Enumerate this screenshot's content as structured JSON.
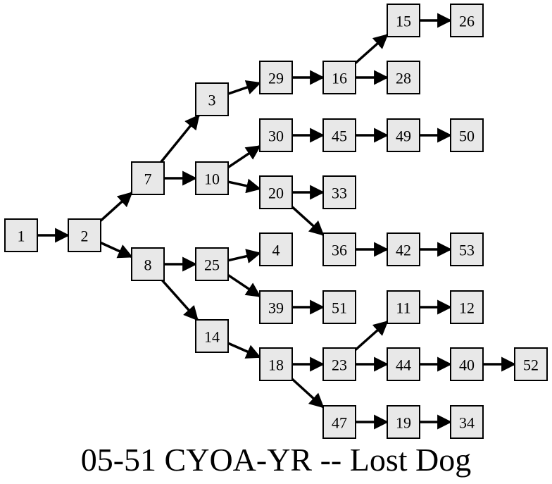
{
  "title": "05-51 CYOA-YR -- Lost Dog",
  "colors": {
    "node_fill": "#e8e8e8",
    "node_stroke": "#000000",
    "edge": "#000000",
    "background": "#ffffff"
  },
  "nodes": [
    {
      "id": "1"
    },
    {
      "id": "2"
    },
    {
      "id": "7"
    },
    {
      "id": "8"
    },
    {
      "id": "3"
    },
    {
      "id": "10"
    },
    {
      "id": "25"
    },
    {
      "id": "14"
    },
    {
      "id": "29"
    },
    {
      "id": "30"
    },
    {
      "id": "20"
    },
    {
      "id": "4"
    },
    {
      "id": "39"
    },
    {
      "id": "18"
    },
    {
      "id": "16"
    },
    {
      "id": "45"
    },
    {
      "id": "33"
    },
    {
      "id": "36"
    },
    {
      "id": "51"
    },
    {
      "id": "23"
    },
    {
      "id": "47"
    },
    {
      "id": "15"
    },
    {
      "id": "28"
    },
    {
      "id": "49"
    },
    {
      "id": "42"
    },
    {
      "id": "11"
    },
    {
      "id": "44"
    },
    {
      "id": "19"
    },
    {
      "id": "26"
    },
    {
      "id": "50"
    },
    {
      "id": "53"
    },
    {
      "id": "12"
    },
    {
      "id": "40"
    },
    {
      "id": "34"
    },
    {
      "id": "52"
    }
  ],
  "edges": [
    [
      "1",
      "2"
    ],
    [
      "2",
      "7"
    ],
    [
      "2",
      "8"
    ],
    [
      "7",
      "3"
    ],
    [
      "7",
      "10"
    ],
    [
      "8",
      "25"
    ],
    [
      "8",
      "14"
    ],
    [
      "3",
      "29"
    ],
    [
      "10",
      "30"
    ],
    [
      "10",
      "20"
    ],
    [
      "25",
      "4"
    ],
    [
      "25",
      "39"
    ],
    [
      "14",
      "18"
    ],
    [
      "29",
      "16"
    ],
    [
      "30",
      "45"
    ],
    [
      "20",
      "33"
    ],
    [
      "20",
      "36"
    ],
    [
      "39",
      "51"
    ],
    [
      "18",
      "23"
    ],
    [
      "18",
      "47"
    ],
    [
      "16",
      "15"
    ],
    [
      "16",
      "28"
    ],
    [
      "45",
      "49"
    ],
    [
      "36",
      "42"
    ],
    [
      "23",
      "11"
    ],
    [
      "23",
      "44"
    ],
    [
      "47",
      "19"
    ],
    [
      "15",
      "26"
    ],
    [
      "49",
      "50"
    ],
    [
      "42",
      "53"
    ],
    [
      "11",
      "12"
    ],
    [
      "44",
      "40"
    ],
    [
      "19",
      "34"
    ],
    [
      "40",
      "52"
    ]
  ]
}
